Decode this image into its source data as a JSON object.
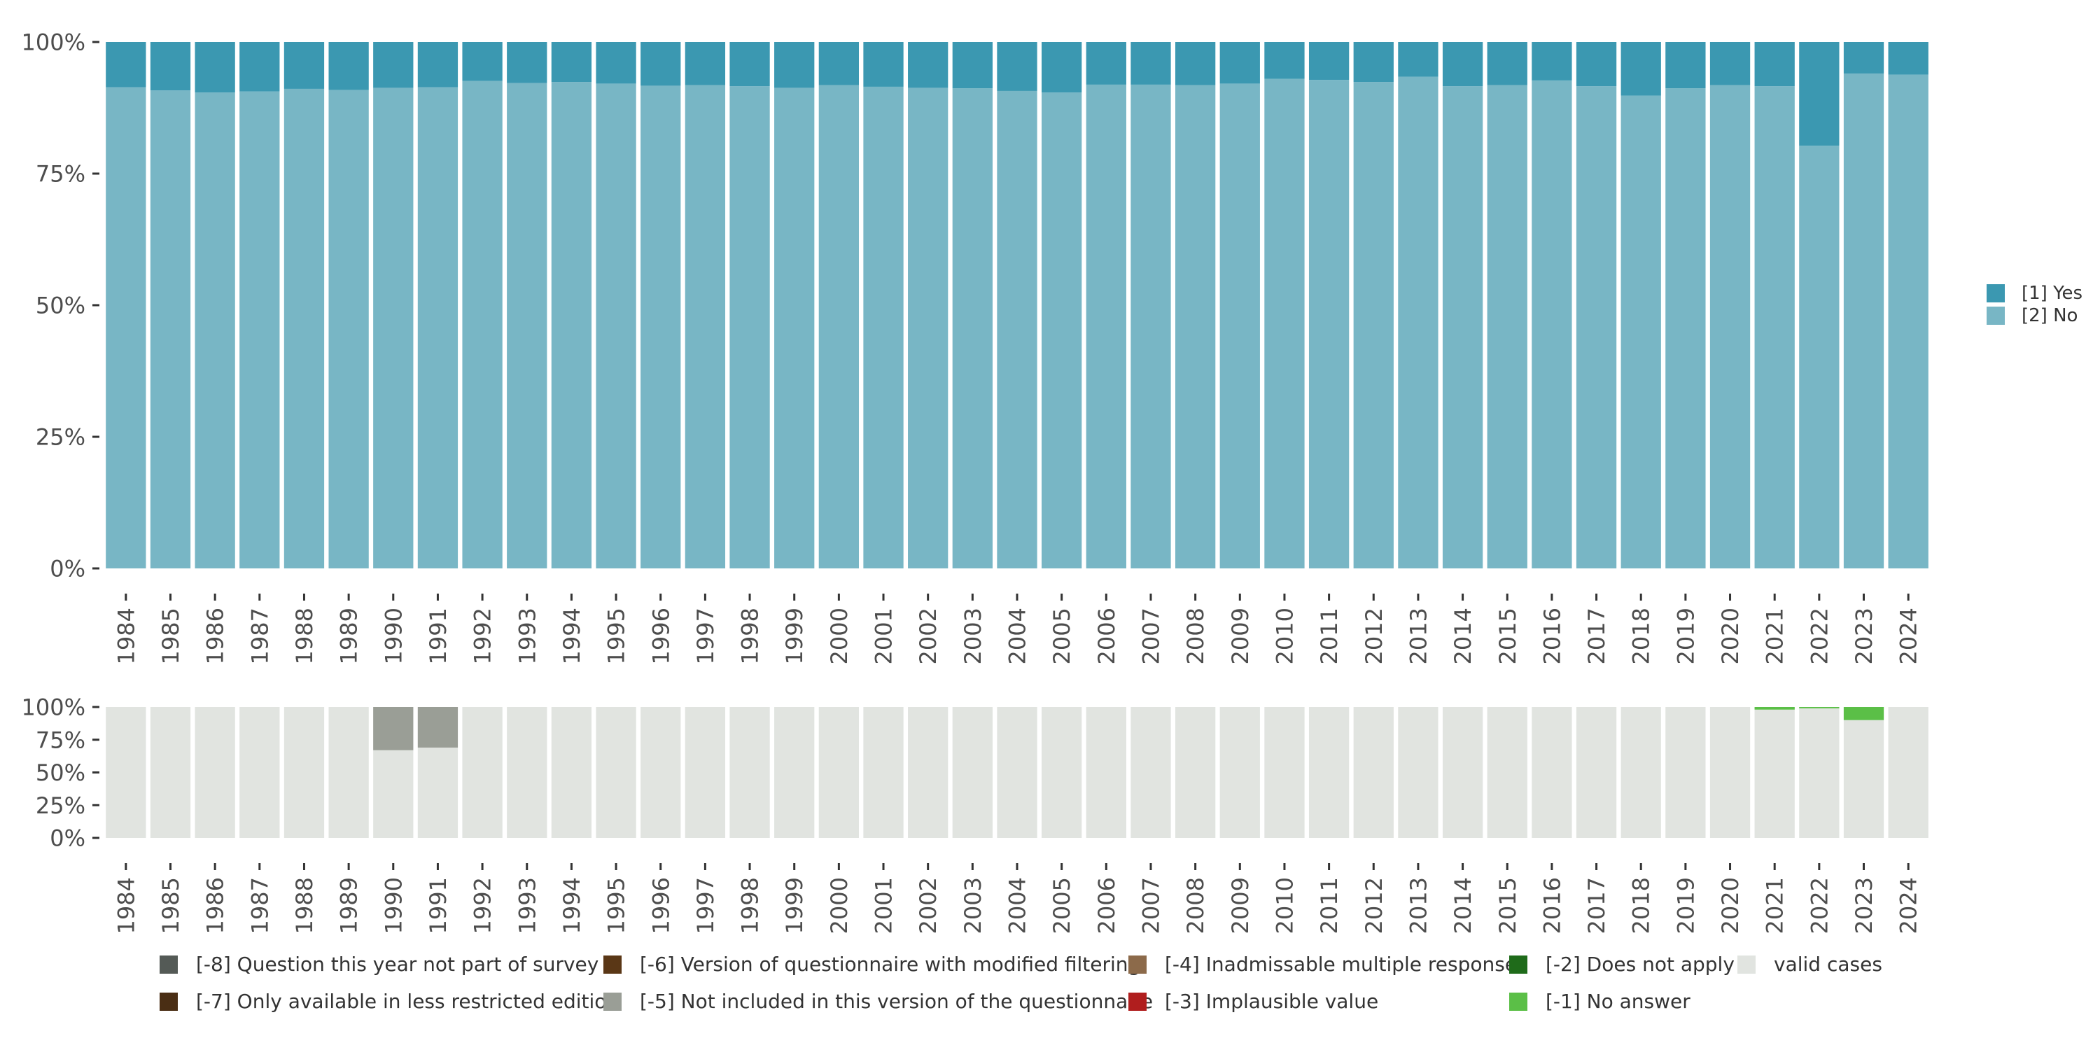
{
  "chart_data": [
    {
      "type": "bar",
      "stacked": true,
      "categories": [
        "1984",
        "1985",
        "1986",
        "1987",
        "1988",
        "1989",
        "1990",
        "1991",
        "1992",
        "1993",
        "1994",
        "1995",
        "1996",
        "1997",
        "1998",
        "1999",
        "2000",
        "2001",
        "2002",
        "2003",
        "2004",
        "2005",
        "2006",
        "2007",
        "2008",
        "2009",
        "2010",
        "2011",
        "2012",
        "2013",
        "2014",
        "2015",
        "2016",
        "2017",
        "2018",
        "2019",
        "2020",
        "2021",
        "2022",
        "2023",
        "2024"
      ],
      "ylim": [
        0,
        100
      ],
      "yticks": [
        "0%",
        "25%",
        "50%",
        "75%",
        "100%"
      ],
      "series": [
        {
          "name": "[2] No",
          "color": "#78b6c5",
          "values": [
            91.4,
            90.8,
            90.4,
            90.6,
            91.1,
            90.9,
            91.3,
            91.4,
            92.6,
            92.2,
            92.4,
            92.1,
            91.7,
            91.8,
            91.6,
            91.3,
            91.8,
            91.5,
            91.3,
            91.2,
            90.7,
            90.4,
            91.9,
            91.9,
            91.8,
            92.1,
            93.0,
            92.8,
            92.4,
            93.4,
            91.6,
            91.8,
            92.7,
            91.6,
            89.8,
            91.2,
            91.8,
            91.6,
            80.3,
            94.0,
            93.8
          ]
        },
        {
          "name": "[1] Yes",
          "color": "#3b98b1",
          "values": [
            8.6,
            9.2,
            9.6,
            9.4,
            8.9,
            9.1,
            8.7,
            8.6,
            7.4,
            7.8,
            7.6,
            7.9,
            8.3,
            8.2,
            8.4,
            8.7,
            8.2,
            8.5,
            8.7,
            8.8,
            9.3,
            9.6,
            8.1,
            8.1,
            8.2,
            7.9,
            7.0,
            7.2,
            7.6,
            6.6,
            8.4,
            8.2,
            7.3,
            8.4,
            10.2,
            8.8,
            8.2,
            8.4,
            19.7,
            6.0,
            6.2
          ]
        }
      ],
      "legend": {
        "placement": "right",
        "items": [
          {
            "label": "[1] Yes",
            "color": "#3b98b1"
          },
          {
            "label": "[2] No",
            "color": "#78b6c5"
          }
        ]
      }
    },
    {
      "type": "bar",
      "stacked": true,
      "categories": [
        "1984",
        "1985",
        "1986",
        "1987",
        "1988",
        "1989",
        "1990",
        "1991",
        "1992",
        "1993",
        "1994",
        "1995",
        "1996",
        "1997",
        "1998",
        "1999",
        "2000",
        "2001",
        "2002",
        "2003",
        "2004",
        "2005",
        "2006",
        "2007",
        "2008",
        "2009",
        "2010",
        "2011",
        "2012",
        "2013",
        "2014",
        "2015",
        "2016",
        "2017",
        "2018",
        "2019",
        "2020",
        "2021",
        "2022",
        "2023",
        "2024"
      ],
      "ylim": [
        0,
        100
      ],
      "yticks": [
        "0%",
        "25%",
        "50%",
        "75%",
        "100%"
      ],
      "series": [
        {
          "name": "valid cases",
          "color": "#e1e4e0",
          "values": [
            100,
            100,
            100,
            100,
            100,
            100,
            67,
            69,
            100,
            100,
            100,
            100,
            100,
            100,
            100,
            100,
            100,
            100,
            100,
            100,
            100,
            100,
            100,
            100,
            100,
            100,
            100,
            100,
            100,
            100,
            100,
            100,
            100,
            100,
            100,
            100,
            100,
            98,
            99,
            90,
            100
          ]
        },
        {
          "name": "[-5] Not included in this version of the questionnaire",
          "color": "#9a9e96",
          "values": [
            0,
            0,
            0,
            0,
            0,
            0,
            33,
            31,
            0,
            0,
            0,
            0,
            0,
            0,
            0,
            0,
            0,
            0,
            0,
            0,
            0,
            0,
            0,
            0,
            0,
            0,
            0,
            0,
            0,
            0,
            0,
            0,
            0,
            0,
            0,
            0,
            0,
            0,
            0,
            0,
            0
          ]
        },
        {
          "name": "[-1] No answer",
          "color": "#5bbf47",
          "values": [
            0,
            0,
            0,
            0,
            0,
            0,
            0,
            0,
            0,
            0,
            0,
            0,
            0,
            0,
            0,
            0,
            0,
            0,
            0,
            0,
            0,
            0,
            0,
            0,
            0,
            0,
            0,
            0,
            0,
            0,
            0,
            0,
            0,
            0,
            0,
            0,
            0,
            2,
            1,
            10,
            0
          ]
        }
      ],
      "legend": {
        "placement": "bottom",
        "items": [
          {
            "label": "[-8] Question this year not part of survey",
            "color": "#545a56"
          },
          {
            "label": "[-7] Only available in less restricted edition",
            "color": "#4a2e14"
          },
          {
            "label": "[-6] Version of questionnaire with modified filtering",
            "color": "#5a3716"
          },
          {
            "label": "[-5] Not included in this version of the questionnaire",
            "color": "#9a9e96"
          },
          {
            "label": "[-4] Inadmissable multiple response",
            "color": "#8c6a4a"
          },
          {
            "label": "[-3] Implausible value",
            "color": "#b01e1e"
          },
          {
            "label": "[-2] Does not apply",
            "color": "#1f6b1a"
          },
          {
            "label": "[-1] No answer",
            "color": "#5bbf47"
          },
          {
            "label": "valid cases",
            "color": "#e1e4e0"
          }
        ]
      }
    }
  ]
}
